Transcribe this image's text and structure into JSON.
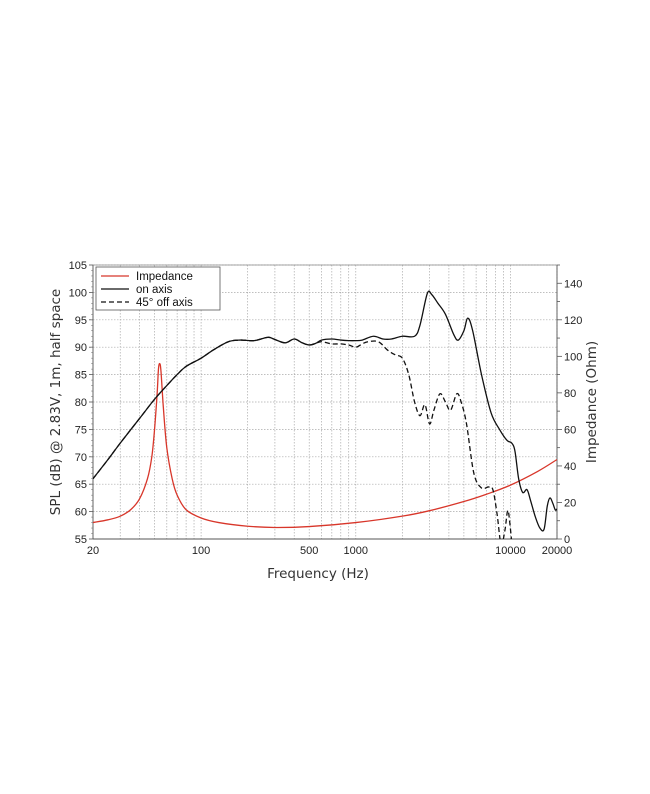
{
  "chart_data": {
    "type": "line",
    "xlabel": "Frequency (Hz)",
    "ylabel": "SPL (dB) @ 2.83V, 1m, half space",
    "y2label": "Impedance (Ohm)",
    "xscale": "log",
    "xlim": [
      20,
      20000
    ],
    "ylim": [
      55,
      105
    ],
    "y2lim": [
      0,
      150
    ],
    "grid": true,
    "legend_position": "top-left",
    "x_ticks": [
      20,
      100,
      500,
      1000,
      10000,
      20000
    ],
    "y_ticks": [
      55,
      60,
      65,
      70,
      75,
      80,
      85,
      90,
      95,
      100,
      105
    ],
    "y2_ticks": [
      0,
      20,
      40,
      60,
      80,
      100,
      120,
      140
    ],
    "colors": {
      "impedance": "#d8362a",
      "on_axis": "#111111",
      "off_axis": "#111111"
    },
    "series": [
      {
        "name": "Impedance",
        "axis": "right",
        "style": "solid",
        "color": "#d8362a",
        "x": [
          20,
          25,
          30,
          35,
          40,
          45,
          48,
          50,
          52,
          53,
          54,
          55,
          57,
          60,
          65,
          70,
          80,
          100,
          130,
          200,
          300,
          500,
          1000,
          2000,
          3000,
          5000,
          7000,
          10000,
          15000,
          20000
        ],
        "y": [
          9,
          10.5,
          12.5,
          16,
          22,
          33,
          45,
          60,
          80,
          93,
          96,
          92,
          72,
          50,
          33,
          24,
          16,
          11.5,
          9,
          7,
          6.3,
          6.8,
          9,
          12.5,
          15.5,
          20.5,
          24.5,
          29.5,
          37,
          43.5
        ]
      },
      {
        "name": "on axis",
        "axis": "left",
        "style": "solid",
        "color": "#111111",
        "x": [
          20,
          25,
          30,
          40,
          50,
          60,
          70,
          80,
          100,
          120,
          150,
          180,
          220,
          270,
          300,
          350,
          400,
          450,
          500,
          550,
          600,
          700,
          800,
          900,
          1000,
          1100,
          1300,
          1500,
          1700,
          2000,
          2400,
          2600,
          2900,
          3100,
          3400,
          3800,
          4300,
          4600,
          5000,
          5300,
          5700,
          6500,
          7500,
          8500,
          9500,
          10200,
          10700,
          11300,
          12000,
          12800,
          13500,
          14500,
          15500,
          16500,
          17300,
          18000,
          18800,
          19500,
          20000
        ],
        "y": [
          66,
          69.5,
          72.5,
          77,
          80.5,
          83,
          85,
          86.5,
          88,
          89.5,
          91,
          91.3,
          91.2,
          91.8,
          91.4,
          90.8,
          91.5,
          90.8,
          90.4,
          90.7,
          91.3,
          91.5,
          91.3,
          91.2,
          91.2,
          91.3,
          92,
          91.5,
          91.5,
          92,
          92,
          94,
          99.8,
          99.6,
          98,
          96,
          92.3,
          91.3,
          93,
          95.3,
          93,
          85,
          78,
          75,
          73,
          72.5,
          71,
          66,
          63.5,
          64,
          62,
          59,
          57,
          56.8,
          61,
          62.5,
          61.5,
          60.3,
          60.5
        ]
      },
      {
        "name": "45° off axis",
        "axis": "left",
        "style": "dashed",
        "color": "#111111",
        "x": [
          20,
          25,
          30,
          40,
          50,
          60,
          70,
          80,
          100,
          120,
          150,
          180,
          220,
          270,
          300,
          350,
          400,
          450,
          500,
          550,
          600,
          700,
          800,
          900,
          1000,
          1100,
          1200,
          1400,
          1600,
          1800,
          2000,
          2200,
          2400,
          2600,
          2800,
          3000,
          3200,
          3500,
          3800,
          4100,
          4500,
          4800,
          5200,
          5800,
          6500,
          7200,
          7700,
          8200,
          8700,
          9200,
          9600,
          9900,
          10300
        ],
        "y": [
          66,
          69.5,
          72.5,
          77,
          80.5,
          83,
          85,
          86.5,
          88,
          89.5,
          91,
          91.3,
          91.2,
          91.8,
          91.4,
          90.8,
          91.5,
          90.8,
          90.4,
          90.7,
          91,
          90.6,
          90.6,
          90.4,
          90,
          90.6,
          91,
          91,
          89.5,
          88.6,
          88,
          85,
          80,
          77.5,
          79.5,
          76,
          78.5,
          81.5,
          80,
          78.5,
          81.5,
          80,
          76,
          67,
          64.3,
          64.5,
          64,
          59.5,
          54,
          56.5,
          60.2,
          58,
          53
        ]
      }
    ]
  }
}
